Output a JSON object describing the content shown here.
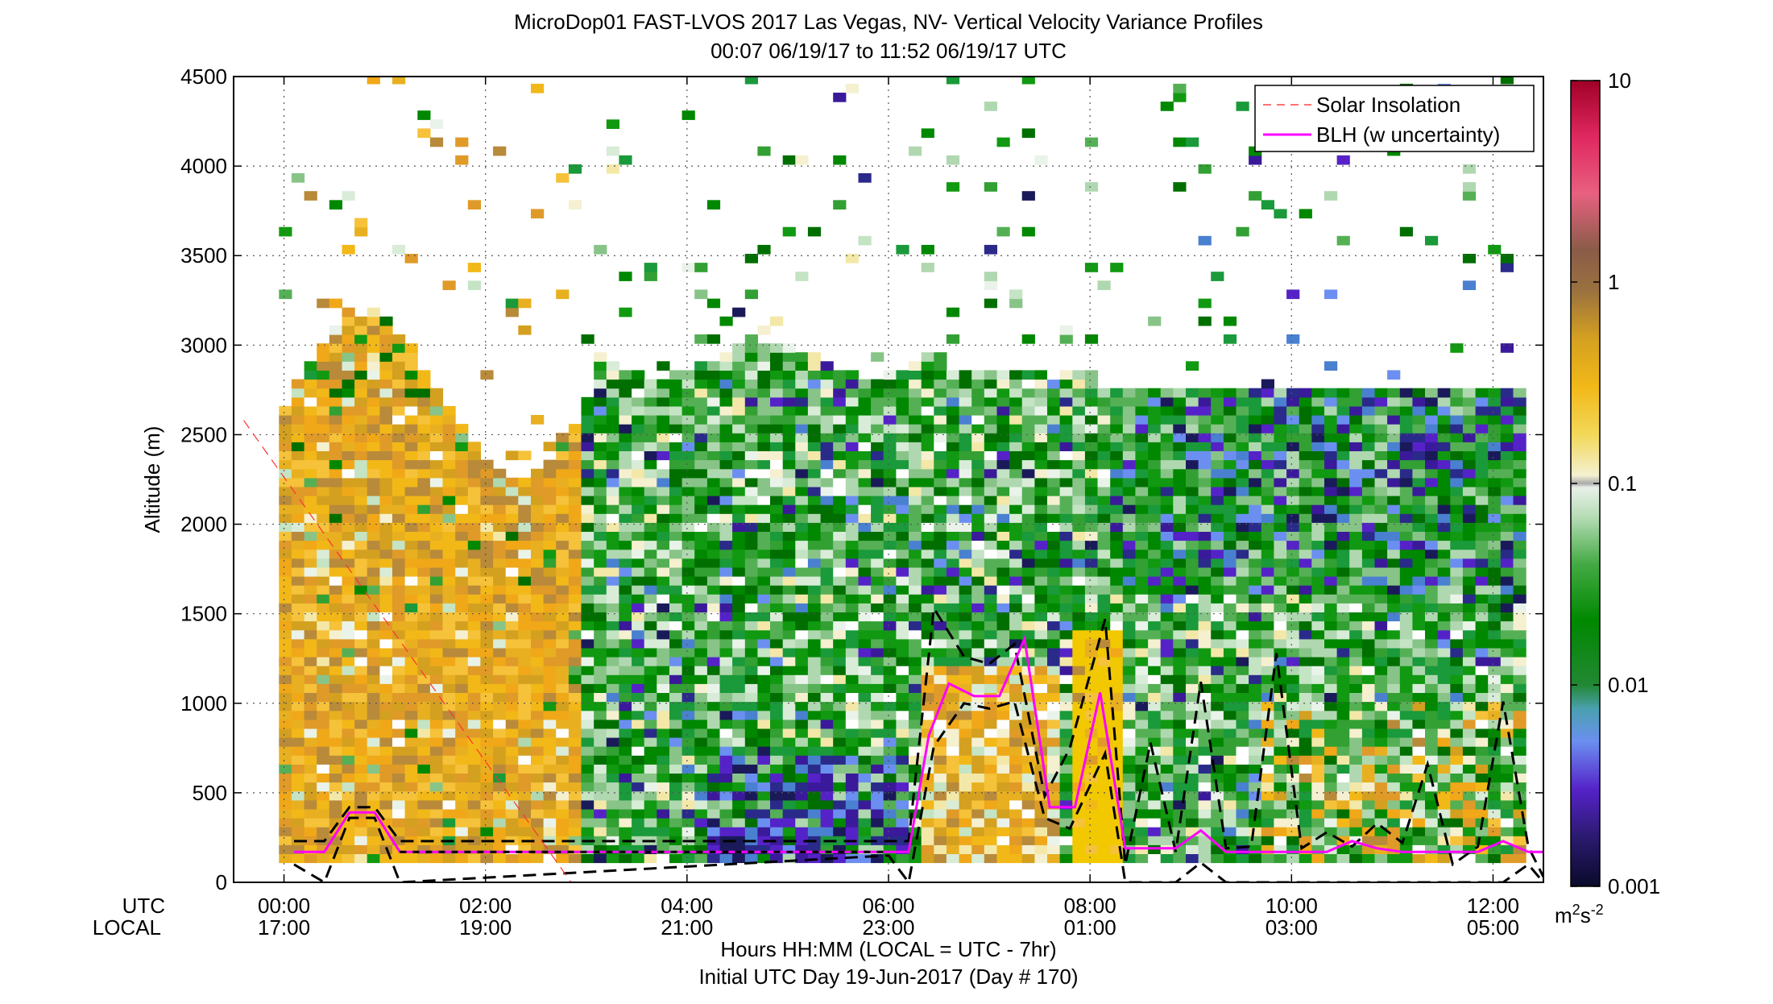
{
  "chart_data": {
    "type": "heatmap",
    "title": "MicroDop01 FAST-LVOS 2017 Las Vegas, NV- Vertical Velocity Variance Profiles",
    "subtitle": "00:07 06/19/17 to 11:52 06/19/17  UTC",
    "ylabel": "Altitude (m)",
    "xlabel": "Hours HH:MM  (LOCAL = UTC - 7hr)",
    "xlabel2": "Initial UTC Day 19-Jun-2017 (Day # 170)",
    "row_label_utc": "UTC",
    "row_label_local": "LOCAL",
    "x_ticks_utc": [
      "00:00",
      "02:00",
      "04:00",
      "06:00",
      "08:00",
      "10:00",
      "12:00"
    ],
    "x_ticks_local": [
      "17:00",
      "19:00",
      "21:00",
      "23:00",
      "01:00",
      "03:00",
      "05:00"
    ],
    "x_tick_hours": [
      0,
      2,
      4,
      6,
      8,
      10,
      12
    ],
    "xlim_hours": [
      -0.5,
      12.5
    ],
    "ylim": [
      0,
      4500
    ],
    "y_ticks": [
      0,
      500,
      1000,
      1500,
      2000,
      2500,
      3000,
      3500,
      4000,
      4500
    ],
    "grid": true,
    "legend_position": "top-right",
    "colorbar": {
      "scale": "log",
      "range": [
        0.001,
        10
      ],
      "tick_labels": [
        "0.001",
        "0.01",
        "0.1",
        "1",
        "10"
      ],
      "tick_values": [
        0.001,
        0.01,
        0.1,
        1,
        10
      ],
      "unit_base": "m",
      "unit_exp1": "2",
      "unit_mid": "s",
      "unit_exp2": "-2"
    },
    "series": [
      {
        "name": "Solar Insolation",
        "color": "#ff0000",
        "style": "dashed",
        "x_hours": [
          -0.4,
          2.85
        ],
        "y": [
          2580,
          0
        ]
      },
      {
        "name": "BLH (w uncertainty)",
        "color": "#ff00ff",
        "style": "solid",
        "x_hours": [
          0.1,
          0.4,
          0.65,
          0.9,
          1.15,
          6.0,
          6.2,
          6.4,
          6.6,
          6.85,
          7.1,
          7.35,
          7.6,
          7.85,
          8.1,
          8.35,
          8.6,
          8.85,
          9.1,
          9.35,
          9.6,
          9.85,
          10.1,
          10.35,
          10.6,
          10.85,
          11.1,
          11.35,
          11.6,
          11.85,
          12.1,
          12.35,
          12.5
        ],
        "y": [
          170,
          170,
          390,
          390,
          170,
          170,
          170,
          820,
          1110,
          1040,
          1040,
          1360,
          420,
          420,
          1060,
          190,
          190,
          190,
          290,
          170,
          170,
          170,
          170,
          170,
          230,
          190,
          170,
          170,
          170,
          170,
          230,
          170,
          170
        ]
      },
      {
        "name": "BLH upper bound",
        "color": "#000000",
        "style": "dashed",
        "x_hours": [
          0.1,
          0.4,
          0.65,
          0.9,
          1.15,
          6.0,
          6.2,
          6.45,
          6.75,
          7.0,
          7.25,
          7.55,
          7.8,
          8.15,
          8.35,
          8.6,
          8.85,
          9.1,
          9.35,
          9.6,
          9.85,
          10.1,
          10.35,
          10.6,
          10.85,
          11.1,
          11.35,
          11.6,
          11.85,
          12.1,
          12.35,
          12.5
        ],
        "y": [
          230,
          230,
          420,
          420,
          230,
          230,
          230,
          1530,
          1260,
          1220,
          1330,
          480,
          750,
          1470,
          100,
          780,
          170,
          1120,
          190,
          200,
          1280,
          190,
          280,
          200,
          330,
          220,
          660,
          100,
          200,
          1010,
          200,
          30
        ]
      },
      {
        "name": "BLH lower bound",
        "color": "#000000",
        "style": "dashed",
        "x_hours": [
          0.1,
          0.4,
          0.65,
          0.9,
          1.15,
          6.0,
          6.2,
          6.45,
          6.75,
          7.0,
          7.25,
          7.55,
          7.8,
          8.15,
          8.35,
          8.6,
          8.85,
          9.1,
          9.35,
          9.6,
          9.85,
          10.1,
          10.35,
          10.6,
          10.85,
          11.1,
          11.35,
          11.6,
          11.85,
          12.1,
          12.35,
          12.5
        ],
        "y": [
          100,
          0,
          360,
          360,
          0,
          150,
          0,
          760,
          1000,
          970,
          1010,
          360,
          300,
          720,
          0,
          0,
          0,
          110,
          0,
          0,
          0,
          0,
          0,
          0,
          0,
          0,
          0,
          0,
          0,
          0,
          100,
          0
        ]
      }
    ]
  }
}
